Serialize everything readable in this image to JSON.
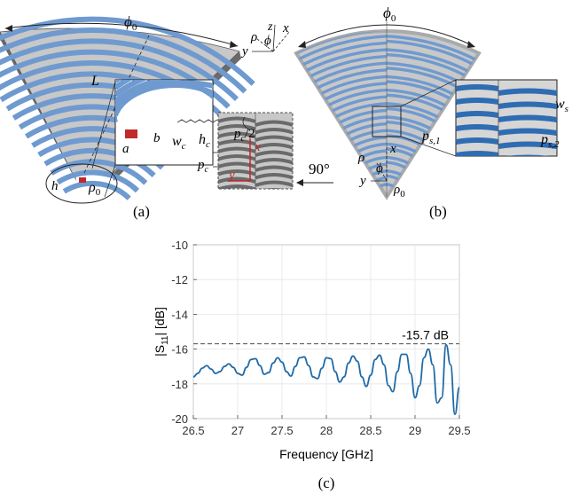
{
  "colors": {
    "stripe_blue": "#6f9ad0",
    "stripe_blue_dark": "#2f6db3",
    "stripe_gray": "#c8c8c8",
    "dark_strip": "#6a6a6a",
    "feed_red": "#c0282a",
    "trace_blue": "#1f6aa8",
    "axis": "#4a4a4a",
    "grid": "#e6e6e6"
  },
  "panel_a": {
    "caption": "(a)",
    "labels": {
      "phi0": "ϕ",
      "phi0_sub": "0",
      "L": "L",
      "h": "h",
      "rho0": "ρ",
      "rho0_sub": "0",
      "a": "a",
      "b": "b",
      "wc": "w",
      "wc_sub": "c",
      "hc": "h",
      "hc_sub": "c",
      "pc_half": "p",
      "pc_half_sub": "c",
      "pc_half_tail": "/2",
      "pc": "p",
      "pc_sub": "c",
      "x": "x",
      "y": "y"
    },
    "coord": {
      "rho": "ρ",
      "z": "z",
      "x": "x",
      "phi": "ϕ",
      "y": "y"
    },
    "rotation": "90°"
  },
  "panel_b": {
    "caption": "(b)",
    "labels": {
      "phi0": "ϕ",
      "phi0_sub": "0",
      "ws": "w",
      "ws_sub": "s",
      "ps1": "p",
      "ps1_sub": "s,1",
      "ps2": "p",
      "ps2_sub": "s,2",
      "rho": "ρ",
      "phi": "ϕ",
      "x": "x",
      "y": "y",
      "rho0": "ρ",
      "rho0_sub": "0"
    }
  },
  "panel_c": {
    "caption": "(c)",
    "annotation": "-15.7 dB"
  },
  "chart_data": {
    "type": "line",
    "title": "",
    "xlabel": "Frequency [GHz]",
    "ylabel": "|S11| [dB]",
    "ylabel_main": "|S",
    "ylabel_sub": "11",
    "ylabel_tail": "| [dB]",
    "xlim": [
      26.5,
      29.5
    ],
    "ylim": [
      -20,
      -10
    ],
    "xticks": [
      "26.5",
      "27",
      "27.5",
      "28",
      "28.5",
      "29",
      "29.5"
    ],
    "yticks": [
      "-10",
      "-12",
      "-14",
      "-16",
      "-18",
      "-20"
    ],
    "grid": true,
    "reference_line": -15.7,
    "series": [
      {
        "color": "#1f6aa8",
        "x": [
          26.5,
          26.55,
          26.6,
          26.65,
          26.7,
          26.75,
          26.8,
          26.85,
          26.9,
          26.95,
          27.0,
          27.05,
          27.1,
          27.15,
          27.2,
          27.25,
          27.3,
          27.35,
          27.4,
          27.45,
          27.5,
          27.55,
          27.6,
          27.65,
          27.7,
          27.75,
          27.8,
          27.85,
          27.9,
          27.95,
          28.0,
          28.05,
          28.1,
          28.15,
          28.2,
          28.25,
          28.3,
          28.35,
          28.4,
          28.45,
          28.5,
          28.55,
          28.6,
          28.65,
          28.7,
          28.75,
          28.8,
          28.85,
          28.9,
          28.95,
          29.0,
          29.05,
          29.1,
          29.15,
          29.2,
          29.25,
          29.3,
          29.35,
          29.4,
          29.45,
          29.5
        ],
        "y": [
          -17.6,
          -17.4,
          -17.1,
          -16.95,
          -17.15,
          -17.4,
          -17.3,
          -17.0,
          -16.85,
          -17.05,
          -17.4,
          -17.5,
          -17.05,
          -16.6,
          -16.55,
          -16.95,
          -17.45,
          -17.35,
          -16.8,
          -16.5,
          -16.75,
          -17.3,
          -17.55,
          -17.0,
          -16.5,
          -16.45,
          -16.95,
          -17.6,
          -17.7,
          -17.1,
          -16.5,
          -16.55,
          -17.3,
          -17.9,
          -17.6,
          -16.8,
          -16.4,
          -16.7,
          -17.6,
          -18.15,
          -17.5,
          -16.6,
          -16.35,
          -16.9,
          -18.1,
          -18.45,
          -17.3,
          -16.3,
          -16.3,
          -17.4,
          -18.8,
          -18.1,
          -16.5,
          -16.0,
          -16.9,
          -19.1,
          -18.8,
          -15.75,
          -16.9,
          -19.75,
          -18.2
        ]
      }
    ]
  }
}
